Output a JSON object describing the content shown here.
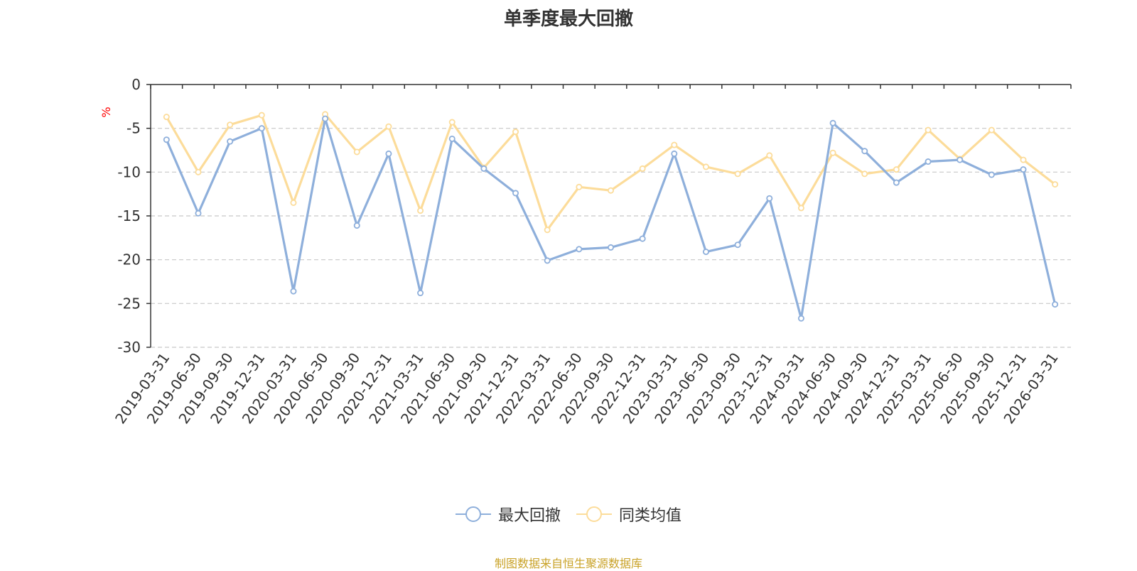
{
  "colors": {
    "series": [
      "#8eafdb",
      "#fcdc9a"
    ],
    "axis": "#333333",
    "grid": "#c8c8c8",
    "unit": "#ff0000",
    "source": "#c9a227"
  },
  "chart_data": {
    "type": "line",
    "title": "单季度最大回撤",
    "ylabel": "%",
    "xlabel": "",
    "ylim": [
      -30,
      0
    ],
    "yticks": [
      0,
      -5,
      -10,
      -15,
      -20,
      -25,
      -30
    ],
    "grid": true,
    "legend_position": "bottom-center",
    "categories": [
      "2019-03-31",
      "2019-06-30",
      "2019-09-30",
      "2019-12-31",
      "2020-03-31",
      "2020-06-30",
      "2020-09-30",
      "2020-12-31",
      "2021-03-31",
      "2021-06-30",
      "2021-09-30",
      "2021-12-31",
      "2022-03-31",
      "2022-06-30",
      "2022-09-30",
      "2022-12-31",
      "2023-03-31",
      "2023-06-30",
      "2023-09-30",
      "2023-12-31",
      "2024-03-31",
      "2024-06-30",
      "2024-09-30",
      "2024-12-31",
      "2025-03-31",
      "2025-06-30",
      "2025-09-30",
      "2025-12-31",
      "2026-03-31"
    ],
    "series": [
      {
        "name": "最大回撤",
        "values": [
          -6.3,
          -14.7,
          -6.5,
          -5.0,
          -23.6,
          -3.9,
          -16.1,
          -7.9,
          -23.8,
          -6.2,
          -9.6,
          -12.4,
          -20.1,
          -18.8,
          -18.6,
          -17.6,
          -7.9,
          -19.1,
          -18.3,
          -13.0,
          -26.7,
          -4.4,
          -7.6,
          -11.2,
          -8.8,
          -8.6,
          -10.3,
          -9.7,
          -25.1
        ]
      },
      {
        "name": "同类均值",
        "values": [
          -3.7,
          -10.0,
          -4.6,
          -3.5,
          -13.5,
          -3.4,
          -7.7,
          -4.8,
          -14.4,
          -4.3,
          -9.5,
          -5.4,
          -16.6,
          -11.7,
          -12.1,
          -9.6,
          -6.9,
          -9.4,
          -10.2,
          -8.1,
          -14.1,
          -7.8,
          -10.2,
          -9.7,
          -5.2,
          -8.5,
          -5.2,
          -8.6,
          -11.4
        ]
      }
    ]
  },
  "legend": {
    "items": [
      "最大回撤",
      "同类均值"
    ]
  },
  "source": "制图数据来自恒生聚源数据库"
}
